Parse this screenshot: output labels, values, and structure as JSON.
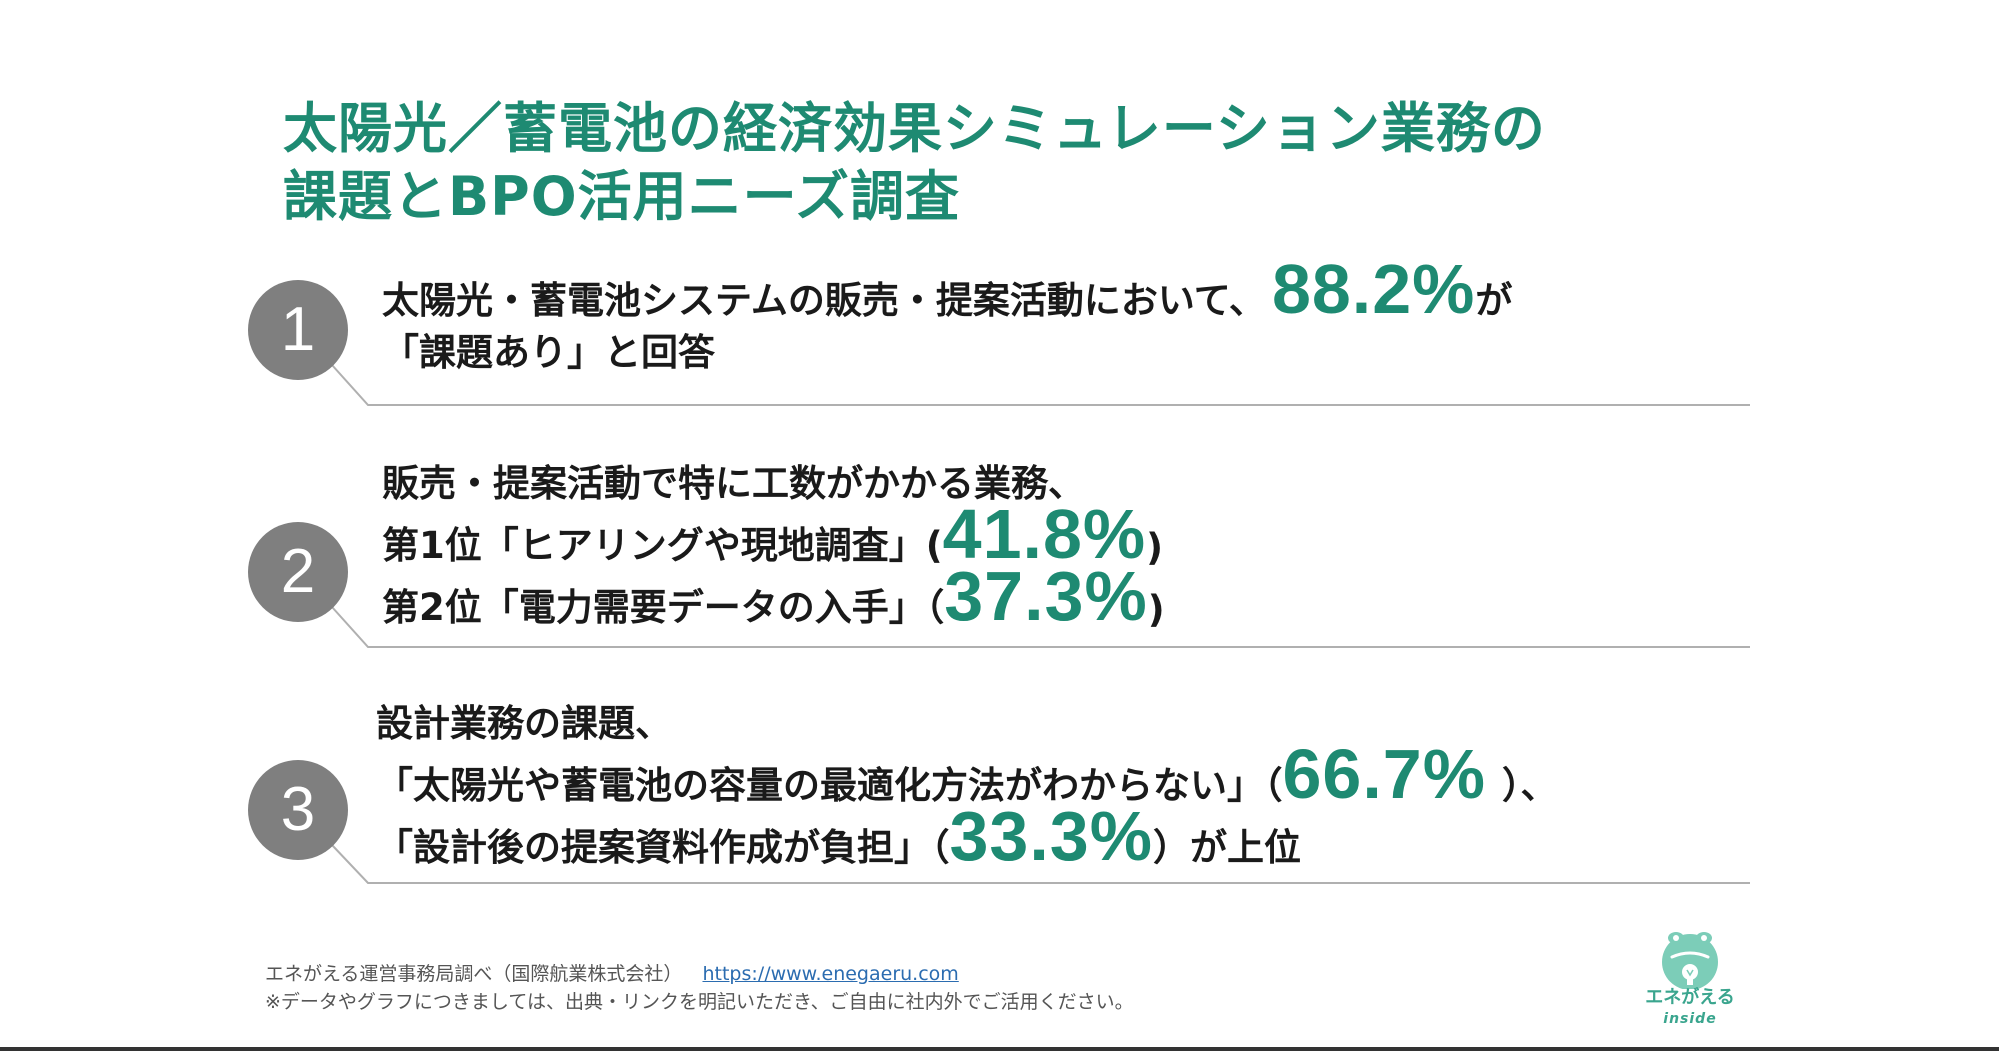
{
  "title": {
    "line1": "太陽光／蓄電池の経済効果シミュレーション業務の",
    "line2": "課題とBPO活用ニーズ調査"
  },
  "findings": [
    {
      "number": "1",
      "line1_pre": "太陽光・蓄電池システムの販売・提案活動において、",
      "line1_value": "88.2%",
      "line1_post": "が",
      "line2": "「課題あり」と回答"
    },
    {
      "number": "2",
      "line1": "販売・提案活動で特に工数がかかる業務、",
      "line2_pre": "第1位「ヒアリングや現地調査」(",
      "line2_value": "41.8%",
      "line2_post": ")",
      "line3_pre": "第2位「電力需要データの入手」（",
      "line3_value": "37.3%",
      "line3_post": ")"
    },
    {
      "number": "3",
      "line1": "設計業務の課題、",
      "line2_pre": "「太陽光や蓄電池の容量の最適化方法がわからない」（",
      "line2_value": "66.7%",
      "line2_post": "）、",
      "line3_pre": "「設計後の提案資料作成が負担」（",
      "line3_value": "33.3%",
      "line3_post": "）が上位"
    }
  ],
  "footer": {
    "source": "エネがえる運営事務局調べ（国際航業株式会社）",
    "url": "https://www.enegaeru.com",
    "note": "※データやグラフにつきましては、出典・リンクを明記いただき、ご自由に社内外でご活用ください。"
  },
  "logo": {
    "name": "エネがえる",
    "sub": "inside"
  },
  "colors": {
    "accent": "#1e8a72",
    "circle": "#7f7f7f",
    "line": "#b0b0b0"
  }
}
